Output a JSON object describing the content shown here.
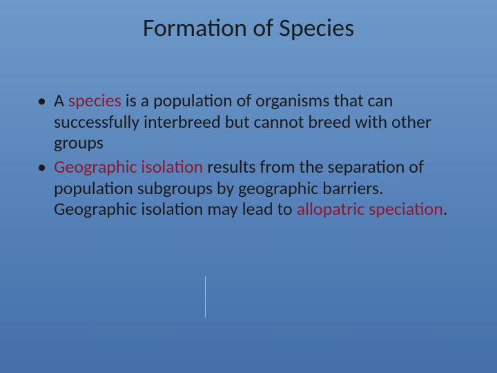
{
  "slide": {
    "title": "Formation of Species",
    "background_gradient": [
      "#6d99c9",
      "#5884bb",
      "#446fa8"
    ],
    "title_color": "#1a1a1a",
    "title_fontsize": 36,
    "body_color": "#1a1a1a",
    "highlight_color": "#8b1a2e",
    "body_fontsize": 26,
    "bullets": [
      {
        "segments": [
          {
            "text": "A ",
            "highlight": false
          },
          {
            "text": "species",
            "highlight": true
          },
          {
            "text": " is a population of organisms that can successfully interbreed but cannot breed with other groups",
            "highlight": false
          }
        ]
      },
      {
        "segments": [
          {
            "text": "Geographic isolation",
            "highlight": true
          },
          {
            "text": " results from the separation of population subgroups by geographic barriers. Geographic isolation may lead to ",
            "highlight": false
          },
          {
            "text": "allopatric speciation",
            "highlight": true
          },
          {
            "text": ".",
            "highlight": false
          }
        ]
      }
    ]
  }
}
